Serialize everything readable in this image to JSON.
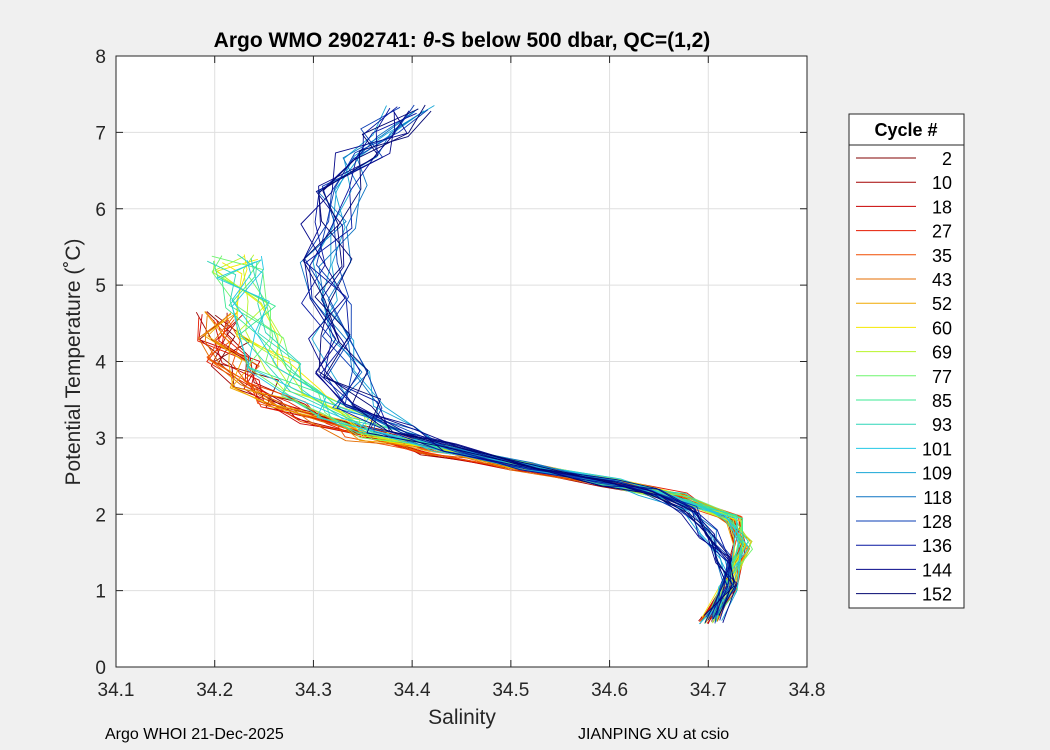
{
  "chart_data": {
    "type": "line",
    "title": "Argo WMO 2902741: θ-S below 500 dbar,  QC=(1,2)",
    "title_parts": {
      "prefix": "Argo WMO 2902741: ",
      "theta": "θ",
      "suffix": "-S below 500 dbar,  QC=(1,2)"
    },
    "xlabel": "Salinity",
    "ylabel": "Potential Temperature (˚C)",
    "xlim": [
      34.1,
      34.8
    ],
    "ylim": [
      0,
      8
    ],
    "xticks": [
      "34.1",
      "34.2",
      "34.3",
      "34.4",
      "34.5",
      "34.6",
      "34.7",
      "34.8"
    ],
    "yticks": [
      "0",
      "1",
      "2",
      "3",
      "4",
      "5",
      "6",
      "7",
      "8"
    ],
    "grid": true,
    "legend": {
      "title": "Cycle #",
      "placement": "right-outside",
      "entries": [
        {
          "label": "2",
          "color": "#800000"
        },
        {
          "label": "10",
          "color": "#a30000"
        },
        {
          "label": "18",
          "color": "#c80000"
        },
        {
          "label": "27",
          "color": "#e41a00"
        },
        {
          "label": "35",
          "color": "#f04b00"
        },
        {
          "label": "43",
          "color": "#e46c00"
        },
        {
          "label": "52",
          "color": "#f0a800"
        },
        {
          "label": "60",
          "color": "#f5e800"
        },
        {
          "label": "69",
          "color": "#b8f52a"
        },
        {
          "label": "77",
          "color": "#6ef56e"
        },
        {
          "label": "85",
          "color": "#3be893"
        },
        {
          "label": "93",
          "color": "#2ed6b8"
        },
        {
          "label": "101",
          "color": "#22c8e6"
        },
        {
          "label": "109",
          "color": "#17a6d6"
        },
        {
          "label": "118",
          "color": "#0e74c4"
        },
        {
          "label": "128",
          "color": "#0a3cb4"
        },
        {
          "label": "136",
          "color": "#0616a0"
        },
        {
          "label": "144",
          "color": "#04088a"
        },
        {
          "label": "152",
          "color": "#020670"
        }
      ]
    },
    "profile_groups": [
      {
        "name": "early",
        "color_indices": [
          0,
          1,
          2,
          3,
          4,
          5,
          6
        ],
        "points": [
          [
            34.7,
            0.62
          ],
          [
            34.72,
            1.05
          ],
          [
            34.735,
            1.6
          ],
          [
            34.725,
            1.95
          ],
          [
            34.67,
            2.22
          ],
          [
            34.6,
            2.42
          ],
          [
            34.51,
            2.62
          ],
          [
            34.42,
            2.82
          ],
          [
            34.36,
            3.02
          ],
          [
            34.31,
            3.22
          ],
          [
            34.27,
            3.45
          ],
          [
            34.24,
            3.7
          ],
          [
            34.22,
            4.0
          ],
          [
            34.21,
            4.3
          ],
          [
            34.205,
            4.6
          ]
        ]
      },
      {
        "name": "mid",
        "color_indices": [
          7,
          8,
          9,
          10,
          11,
          12
        ],
        "points": [
          [
            34.7,
            0.62
          ],
          [
            34.72,
            1.05
          ],
          [
            34.735,
            1.6
          ],
          [
            34.725,
            1.95
          ],
          [
            34.67,
            2.22
          ],
          [
            34.6,
            2.42
          ],
          [
            34.51,
            2.65
          ],
          [
            34.43,
            2.86
          ],
          [
            34.37,
            3.06
          ],
          [
            34.33,
            3.3
          ],
          [
            34.29,
            3.6
          ],
          [
            34.26,
            3.95
          ],
          [
            34.245,
            4.35
          ],
          [
            34.235,
            4.75
          ],
          [
            34.225,
            5.15
          ],
          [
            34.22,
            5.35
          ]
        ]
      },
      {
        "name": "late",
        "color_indices": [
          13,
          14,
          15,
          16,
          17,
          18
        ],
        "points": [
          [
            34.705,
            0.62
          ],
          [
            34.72,
            1.05
          ],
          [
            34.715,
            1.4
          ],
          [
            34.7,
            1.75
          ],
          [
            34.68,
            2.05
          ],
          [
            34.64,
            2.3
          ],
          [
            34.6,
            2.42
          ],
          [
            34.52,
            2.62
          ],
          [
            34.44,
            2.88
          ],
          [
            34.38,
            3.12
          ],
          [
            34.345,
            3.45
          ],
          [
            34.33,
            3.85
          ],
          [
            34.32,
            4.3
          ],
          [
            34.315,
            4.8
          ],
          [
            34.312,
            5.3
          ],
          [
            34.315,
            5.8
          ],
          [
            34.33,
            6.25
          ],
          [
            34.35,
            6.7
          ],
          [
            34.37,
            7.0
          ],
          [
            34.395,
            7.3
          ]
        ]
      }
    ]
  },
  "footer": {
    "left": "Argo WHOI 21-Dec-2025",
    "right": "JIANPING XU at csio"
  }
}
